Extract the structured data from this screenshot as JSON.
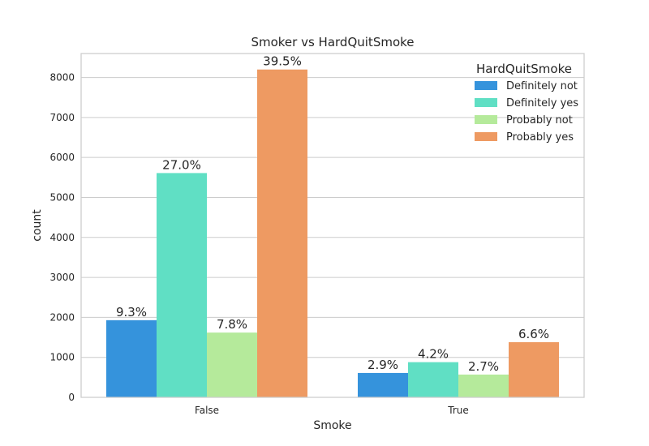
{
  "chart_data": {
    "type": "bar",
    "title": "Smoker vs HardQuitSmoke",
    "xlabel": "Smoke",
    "ylabel": "count",
    "categories": [
      "False",
      "True"
    ],
    "ylim": [
      0,
      8600
    ],
    "yticks": [
      0,
      1000,
      2000,
      3000,
      4000,
      5000,
      6000,
      7000,
      8000
    ],
    "grid": true,
    "legend_title": "HardQuitSmoke",
    "legend_position": "top-right",
    "series": [
      {
        "name": "Definitely not",
        "color": "#3593DC",
        "values": [
          1930,
          610
        ],
        "labels": [
          "9.3%",
          "2.9%"
        ]
      },
      {
        "name": "Definitely yes",
        "color": "#60DFC4",
        "values": [
          5610,
          880
        ],
        "labels": [
          "27.0%",
          "4.2%"
        ]
      },
      {
        "name": "Probably not",
        "color": "#B5EA9B",
        "values": [
          1620,
          570
        ],
        "labels": [
          "7.8%",
          "2.7%"
        ]
      },
      {
        "name": "Probably yes",
        "color": "#EE9A62",
        "values": [
          8200,
          1380
        ],
        "labels": [
          "39.5%",
          "6.6%"
        ]
      }
    ]
  }
}
